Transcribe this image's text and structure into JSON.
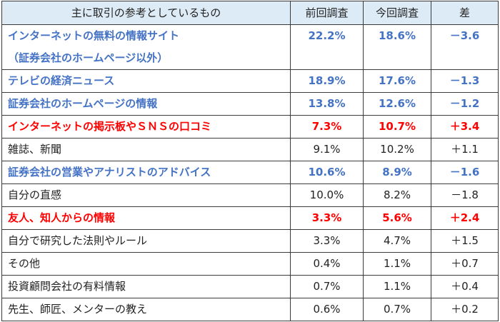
{
  "table": {
    "headers": {
      "item": "主に取引の参考としているもの",
      "previous": "前回調査",
      "current": "今回調査",
      "diff": "差"
    },
    "colors": {
      "header_bg": "#DDEBF7",
      "decrease_highlight": "#4472C4",
      "increase_highlight": "#FF0000",
      "normal": "#222222",
      "border": "#3a3a3a"
    },
    "rows": [
      {
        "label_line1": "インターネットの無料の情報サイト",
        "label_line2": "（証券会社のホームページ以外）",
        "previous": "22.2%",
        "current": "18.6%",
        "diff": "－3.6",
        "style": "blue"
      },
      {
        "label": "テレビの経済ニュース",
        "previous": "18.9%",
        "current": "17.6%",
        "diff": "－1.3",
        "style": "blue"
      },
      {
        "label": "証券会社のホームページの情報",
        "previous": "13.8%",
        "current": "12.6%",
        "diff": "－1.2",
        "style": "blue"
      },
      {
        "label": "インターネットの掲示板やＳＮＳの口コミ",
        "previous": "7.3%",
        "current": "10.7%",
        "diff": "＋3.4",
        "style": "red"
      },
      {
        "label": "雑誌、新聞",
        "previous": "9.1%",
        "current": "10.2%",
        "diff": "＋1.1",
        "style": "plain"
      },
      {
        "label": "証券会社の営業やアナリストのアドバイス",
        "previous": "10.6%",
        "current": "8.9%",
        "diff": "－1.6",
        "style": "blue"
      },
      {
        "label": "自分の直感",
        "previous": "10.0%",
        "current": "8.2%",
        "diff": "－1.8",
        "style": "plain"
      },
      {
        "label": "友人、知人からの情報",
        "previous": "3.3%",
        "current": "5.6%",
        "diff": "＋2.4",
        "style": "red"
      },
      {
        "label": "自分で研究した法則やルール",
        "previous": "3.3%",
        "current": "4.7%",
        "diff": "＋1.5",
        "style": "plain"
      },
      {
        "label": "その他",
        "previous": "0.4%",
        "current": "1.1%",
        "diff": "＋0.7",
        "style": "plain"
      },
      {
        "label": "投資顧問会社の有料情報",
        "previous": "0.7%",
        "current": "1.1%",
        "diff": "＋0.4",
        "style": "plain"
      },
      {
        "label": "先生、師匠、メンターの教え",
        "previous": "0.6%",
        "current": "0.7%",
        "diff": "＋0.2",
        "style": "plain"
      }
    ]
  }
}
